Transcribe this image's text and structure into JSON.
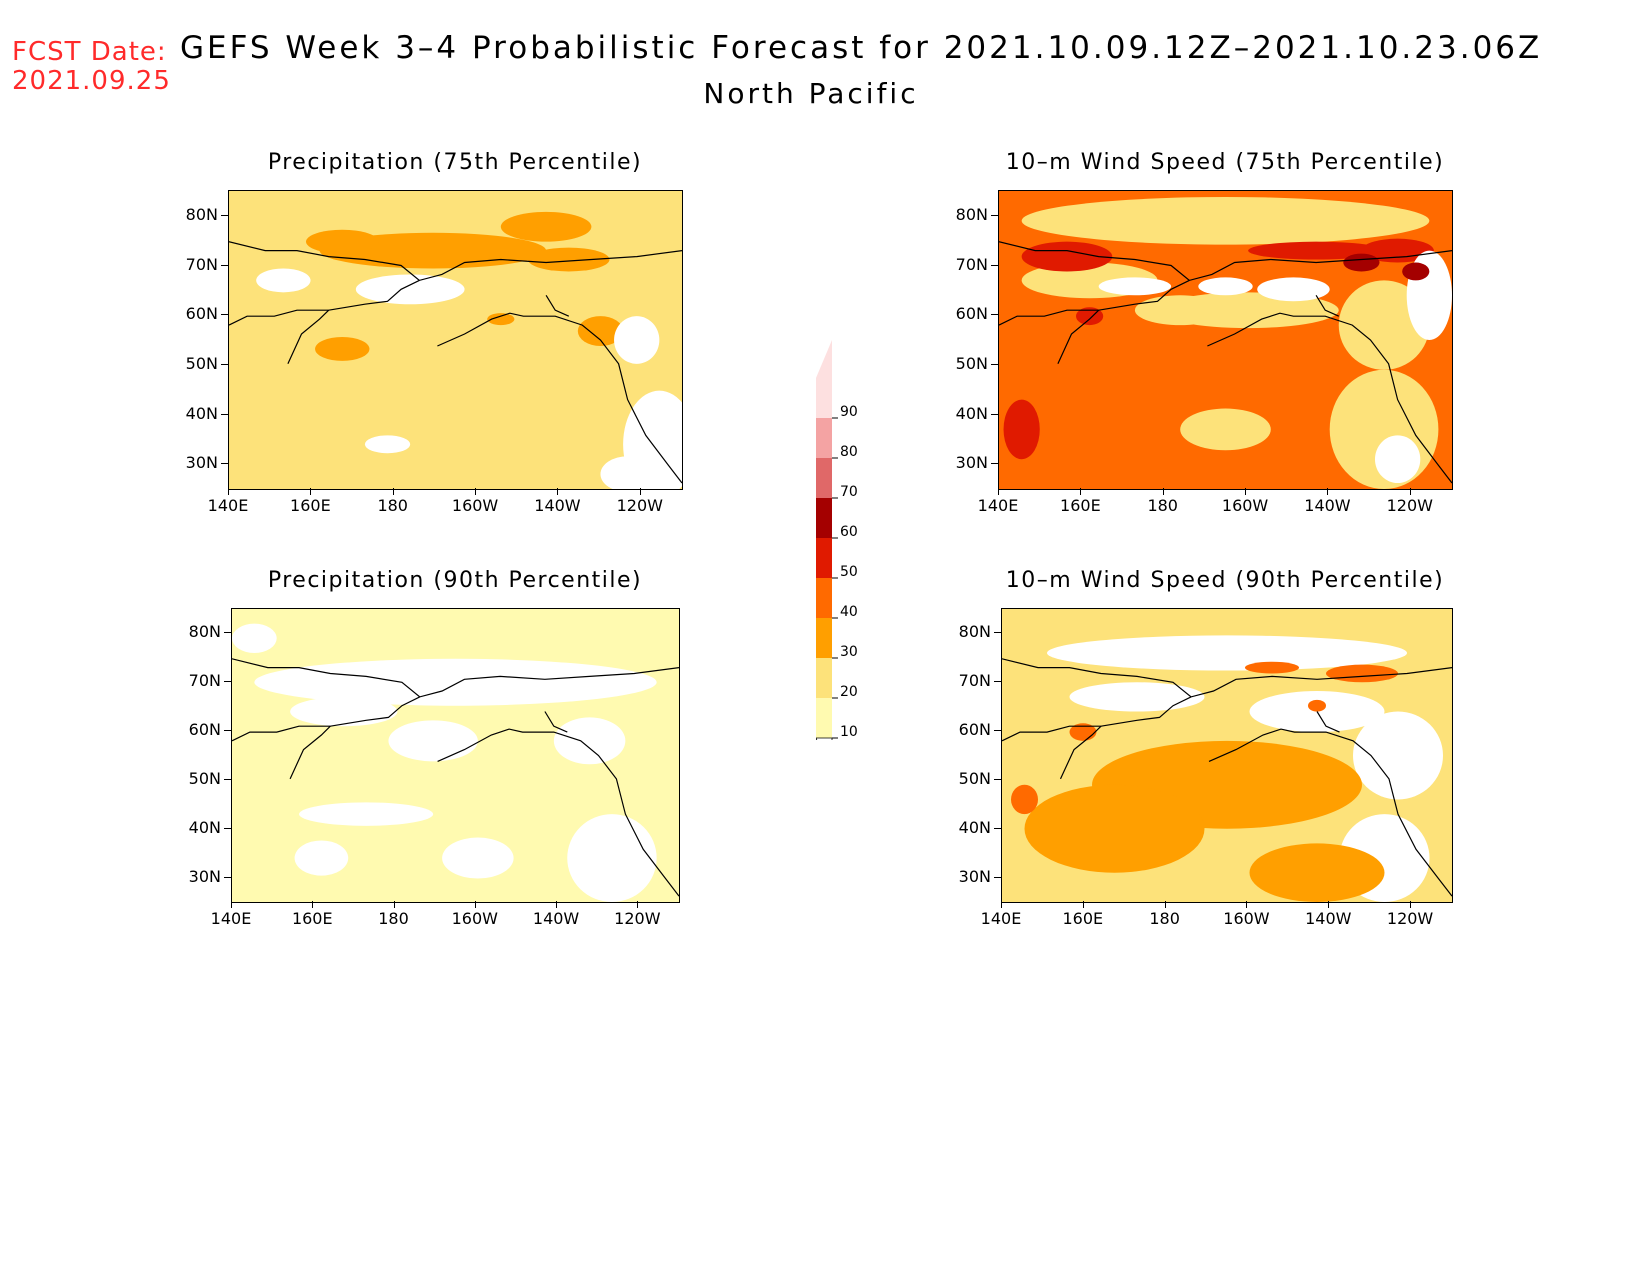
{
  "header": {
    "fcst_label": "FCST Date:",
    "fcst_date": "2021.09.25",
    "title": "GEFS Week 3–4 Probabilistic Forecast for 2021.10.09.12Z–2021.10.23.06Z",
    "region": "North Pacific"
  },
  "panels": [
    {
      "title": "Precipitation (75th Percentile)",
      "base": "#fde27a",
      "variant": "p75"
    },
    {
      "title": "10–m Wind Speed (75th Percentile)",
      "base": "#ff6a00",
      "variant": "w75"
    },
    {
      "title": "Precipitation (90th Percentile)",
      "base": "#fffab0",
      "variant": "p90"
    },
    {
      "title": "10–m Wind Speed (90th Percentile)",
      "base": "#fde27a",
      "variant": "w90"
    }
  ],
  "axes": {
    "lat_labels": [
      "80N",
      "70N",
      "60N",
      "50N",
      "40N",
      "30N"
    ],
    "lon_labels": [
      "140E",
      "160E",
      "180",
      "160W",
      "140W",
      "120W"
    ]
  },
  "colorbar": {
    "levels": [
      "90",
      "80",
      "70",
      "60",
      "50",
      "40",
      "30",
      "20",
      "10"
    ],
    "colors": [
      "#fde0e0",
      "#f4a3a3",
      "#e06868",
      "#a40000",
      "#e01a00",
      "#ff6a00",
      "#ff9f00",
      "#fde27a",
      "#fffab0"
    ]
  }
}
